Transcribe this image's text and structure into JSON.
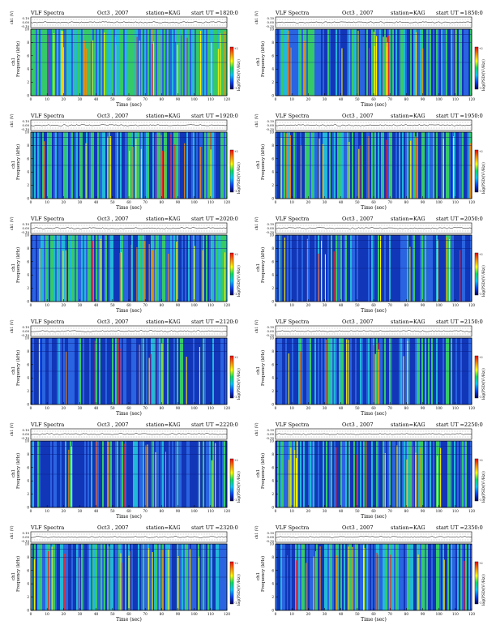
{
  "colors": {
    "colorbar_stops": [
      "#ff0000",
      "#ff8800",
      "#ffff00",
      "#00e060",
      "#00c8ff",
      "#0044ff",
      "#000060"
    ],
    "background_dominant": "#1d4fd8",
    "frame": "#000000"
  },
  "common": {
    "title_left": "VLF Spectra",
    "station": "station=KAG",
    "start_label": "start  UT  =",
    "xlabel": "Time  (sec)",
    "ylabel_freq": "Frequency  (kHz)",
    "ylabel_ch": "ch1",
    "ylabel_top": "ch1 (V)",
    "colorbar_label": "log(PSD/(V²/Hz))",
    "top_ticks": [
      "0.10",
      "0.00",
      "-0.10"
    ],
    "colorbar_ticks": [
      "+2",
      "-1"
    ]
  },
  "chart_data": [
    {
      "type": "heatmap",
      "title": "VLF Spectra",
      "date": "Oct3 , 2007",
      "station": "station=KAG",
      "start_ut": "1820:0",
      "xlabel": "Time  (sec)",
      "ylabel": "Frequency  (kHz)",
      "xlim": [
        0,
        120
      ],
      "ylim": [
        0,
        10
      ],
      "x_ticks": [
        0,
        10,
        20,
        30,
        40,
        50,
        60,
        70,
        80,
        90,
        100,
        110,
        120
      ],
      "y_ticks": [
        0,
        2,
        4,
        6,
        8,
        10
      ],
      "activity": "high"
    },
    {
      "type": "heatmap",
      "title": "VLF Spectra",
      "date": "Oct3 , 2007",
      "station": "station=KAG",
      "start_ut": "1850:0",
      "xlabel": "Time  (sec)",
      "ylabel": "Frequency  (kHz)",
      "xlim": [
        0,
        120
      ],
      "ylim": [
        0,
        10
      ],
      "x_ticks": [
        0,
        10,
        20,
        30,
        40,
        50,
        60,
        70,
        80,
        90,
        100,
        110,
        120
      ],
      "y_ticks": [
        0,
        2,
        4,
        6,
        8,
        10
      ],
      "activity": "medium"
    },
    {
      "type": "heatmap",
      "title": "VLF Spectra",
      "date": "Oct3 , 2007",
      "station": "station=KAG",
      "start_ut": "1920:0",
      "xlabel": "Time  (sec)",
      "ylabel": "Frequency  (kHz)",
      "xlim": [
        0,
        120
      ],
      "ylim": [
        0,
        10
      ],
      "x_ticks": [
        0,
        10,
        20,
        30,
        40,
        50,
        60,
        70,
        80,
        90,
        100,
        110,
        120
      ],
      "y_ticks": [
        0,
        2,
        4,
        6,
        8,
        10
      ],
      "activity": "medium"
    },
    {
      "type": "heatmap",
      "title": "VLF Spectra",
      "date": "Oct3 , 2007",
      "station": "station=KAG",
      "start_ut": "1950:0",
      "xlabel": "Time  (sec)",
      "ylabel": "Frequency  (kHz)",
      "xlim": [
        0,
        120
      ],
      "ylim": [
        0,
        10
      ],
      "x_ticks": [
        0,
        10,
        20,
        30,
        40,
        50,
        60,
        70,
        80,
        90,
        100,
        110,
        120
      ],
      "y_ticks": [
        0,
        2,
        4,
        6,
        8,
        10
      ],
      "activity": "medium"
    },
    {
      "type": "heatmap",
      "title": "VLF Spectra",
      "date": "Oct3 , 2007",
      "station": "station=KAG",
      "start_ut": "2020:0",
      "xlabel": "Time  (sec)",
      "ylabel": "Frequency  (kHz)",
      "xlim": [
        0,
        120
      ],
      "ylim": [
        0,
        10
      ],
      "x_ticks": [
        0,
        10,
        20,
        30,
        40,
        50,
        60,
        70,
        80,
        90,
        100,
        110,
        120
      ],
      "y_ticks": [
        0,
        2,
        4,
        6,
        8,
        10
      ],
      "activity": "medium"
    },
    {
      "type": "heatmap",
      "title": "VLF Spectra",
      "date": "Oct3 , 2007",
      "station": "station=KAG",
      "start_ut": "2050:0",
      "xlabel": "Time  (sec)",
      "ylabel": "Frequency  (kHz)",
      "xlim": [
        0,
        120
      ],
      "ylim": [
        0,
        10
      ],
      "x_ticks": [
        0,
        10,
        20,
        30,
        40,
        50,
        60,
        70,
        80,
        90,
        100,
        110,
        120
      ],
      "y_ticks": [
        0,
        2,
        4,
        6,
        8,
        10
      ],
      "activity": "low"
    },
    {
      "type": "heatmap",
      "title": "VLF Spectra",
      "date": "Oct3 , 2007",
      "station": "station=KAG",
      "start_ut": "2120:0",
      "xlabel": "Time  (sec)",
      "ylabel": "Frequency  (kHz)",
      "xlim": [
        0,
        120
      ],
      "ylim": [
        0,
        10
      ],
      "x_ticks": [
        0,
        10,
        20,
        30,
        40,
        50,
        60,
        70,
        80,
        90,
        100,
        110,
        120
      ],
      "y_ticks": [
        0,
        2,
        4,
        6,
        8,
        10
      ],
      "activity": "low"
    },
    {
      "type": "heatmap",
      "title": "VLF Spectra",
      "date": "Oct3 , 2007",
      "station": "station=KAG",
      "start_ut": "2150:0",
      "xlabel": "Time  (sec)",
      "ylabel": "Frequency  (kHz)",
      "xlim": [
        0,
        120
      ],
      "ylim": [
        0,
        10
      ],
      "x_ticks": [
        0,
        10,
        20,
        30,
        40,
        50,
        60,
        70,
        80,
        90,
        100,
        110,
        120
      ],
      "y_ticks": [
        0,
        2,
        4,
        6,
        8,
        10
      ],
      "activity": "low"
    },
    {
      "type": "heatmap",
      "title": "VLF Spectra",
      "date": "Oct3 , 2007",
      "station": "station=KAG",
      "start_ut": "2220:0",
      "xlabel": "Time  (sec)",
      "ylabel": "Frequency  (kHz)",
      "xlim": [
        0,
        120
      ],
      "ylim": [
        0,
        10
      ],
      "x_ticks": [
        0,
        10,
        20,
        30,
        40,
        50,
        60,
        70,
        80,
        90,
        100,
        110,
        120
      ],
      "y_ticks": [
        0,
        2,
        4,
        6,
        8,
        10
      ],
      "activity": "low"
    },
    {
      "type": "heatmap",
      "title": "VLF Spectra",
      "date": "Oct3 , 2007",
      "station": "station=KAG",
      "start_ut": "2250:0",
      "xlabel": "Time  (sec)",
      "ylabel": "Frequency  (kHz)",
      "xlim": [
        0,
        120
      ],
      "ylim": [
        0,
        10
      ],
      "x_ticks": [
        0,
        10,
        20,
        30,
        40,
        50,
        60,
        70,
        80,
        90,
        100,
        110,
        120
      ],
      "y_ticks": [
        0,
        2,
        4,
        6,
        8,
        10
      ],
      "activity": "medium"
    },
    {
      "type": "heatmap",
      "title": "VLF Spectra",
      "date": "Oct3 , 2007",
      "station": "station=KAG",
      "start_ut": "2320:0",
      "xlabel": "Time  (sec)",
      "ylabel": "Frequency  (kHz)",
      "xlim": [
        0,
        120
      ],
      "ylim": [
        0,
        10
      ],
      "x_ticks": [
        0,
        10,
        20,
        30,
        40,
        50,
        60,
        70,
        80,
        90,
        100,
        110,
        120
      ],
      "y_ticks": [
        0,
        2,
        4,
        6,
        8,
        10
      ],
      "activity": "medium"
    },
    {
      "type": "heatmap",
      "title": "VLF Spectra",
      "date": "Oct3 , 2007",
      "station": "station=KAG",
      "start_ut": "2350:0",
      "xlabel": "Time  (sec)",
      "ylabel": "Frequency  (kHz)",
      "xlim": [
        0,
        120
      ],
      "ylim": [
        0,
        10
      ],
      "x_ticks": [
        0,
        10,
        20,
        30,
        40,
        50,
        60,
        70,
        80,
        90,
        100,
        110,
        120
      ],
      "y_ticks": [
        0,
        2,
        4,
        6,
        8,
        10
      ],
      "activity": "medium"
    }
  ]
}
